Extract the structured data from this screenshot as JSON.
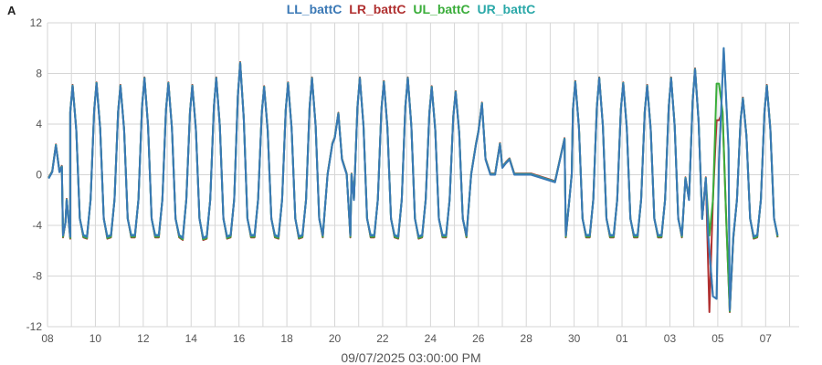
{
  "panel_label": "A",
  "footer_text": "09/07/2025 03:00:00 PM",
  "colors": {
    "LL_battC": "#3a78b5",
    "LR_battC": "#b03030",
    "UL_battC": "#3aad3a",
    "UR_battC": "#2aa8a8",
    "grid": "#d6d6d6",
    "axis_text": "#555555"
  },
  "chart_data": {
    "type": "line",
    "title": "",
    "xlabel": "",
    "ylabel": "",
    "x_unit": "day index from start (0 = the tick labelled 08)",
    "xlim": [
      0,
      31.4
    ],
    "ylim": [
      -12,
      12
    ],
    "y_ticks": [
      -12,
      -8,
      -4,
      0,
      4,
      8,
      12
    ],
    "x_ticks": [
      {
        "x": 0,
        "label": "08"
      },
      {
        "x": 2,
        "label": "10"
      },
      {
        "x": 4,
        "label": "12"
      },
      {
        "x": 6,
        "label": "14"
      },
      {
        "x": 8,
        "label": "16"
      },
      {
        "x": 10,
        "label": "18"
      },
      {
        "x": 12,
        "label": "20"
      },
      {
        "x": 14,
        "label": "22"
      },
      {
        "x": 16,
        "label": "24"
      },
      {
        "x": 18,
        "label": "26"
      },
      {
        "x": 20,
        "label": "28"
      },
      {
        "x": 22,
        "label": "30"
      },
      {
        "x": 24,
        "label": "01"
      },
      {
        "x": 26,
        "label": "03"
      },
      {
        "x": 28,
        "label": "05"
      },
      {
        "x": 30,
        "label": "07"
      }
    ],
    "grid": true,
    "legend_position": "top-center",
    "series": [
      {
        "name": "LL_battC"
      },
      {
        "name": "LR_battC"
      },
      {
        "name": "UL_battC"
      },
      {
        "name": "UR_battC"
      }
    ],
    "daily_cycle": {
      "description": "each day: near-flat low around -4.8 overnight, rising to a daytime peak then falling back",
      "peaks": [
        {
          "day": 0,
          "peak": 2.3,
          "low": -4.9
        },
        {
          "day": 1,
          "peak": 7.0,
          "low": -4.8
        },
        {
          "day": 2,
          "peak": 7.2,
          "low": -4.9
        },
        {
          "day": 3,
          "peak": 7.0,
          "low": -4.8
        },
        {
          "day": 4,
          "peak": 7.6,
          "low": -4.8
        },
        {
          "day": 5,
          "peak": 7.2,
          "low": -4.8
        },
        {
          "day": 6,
          "peak": 7.0,
          "low": -5.0
        },
        {
          "day": 7,
          "peak": 7.6,
          "low": -4.9
        },
        {
          "day": 8,
          "peak": 8.8,
          "low": -4.8
        },
        {
          "day": 9,
          "peak": 6.9,
          "low": -4.8
        },
        {
          "day": 10,
          "peak": 7.2,
          "low": -4.9
        },
        {
          "day": 11,
          "peak": 7.6,
          "low": -4.8
        },
        {
          "day": 12,
          "peak": 4.8,
          "low": 0.0
        },
        {
          "day": 13,
          "peak": 7.6,
          "low": -4.8
        },
        {
          "day": 14,
          "peak": 7.3,
          "low": -4.8
        },
        {
          "day": 15,
          "peak": 7.6,
          "low": -4.9
        },
        {
          "day": 16,
          "peak": 6.9,
          "low": -4.8
        },
        {
          "day": 17,
          "peak": 6.5,
          "low": -4.8
        },
        {
          "day": 18,
          "peak": 5.6,
          "low": 0.0
        },
        {
          "day": 19,
          "peak": 0.9,
          "low": 0.0
        },
        {
          "day": 22,
          "peak": 7.3,
          "low": -4.8
        },
        {
          "day": 23,
          "peak": 7.6,
          "low": -4.8
        },
        {
          "day": 24,
          "peak": 7.2,
          "low": -4.8
        },
        {
          "day": 25,
          "peak": 7.0,
          "low": -4.8
        },
        {
          "day": 26,
          "peak": 7.6,
          "low": -4.8
        },
        {
          "day": 27,
          "peak": 8.3,
          "low": -0.3
        },
        {
          "day": 28,
          "peak": 10.0,
          "low": -10.7
        },
        {
          "day": 29,
          "peak": 6.0,
          "low": -4.9
        },
        {
          "day": 30,
          "peak": 7.0,
          "low": -4.8
        }
      ]
    }
  }
}
